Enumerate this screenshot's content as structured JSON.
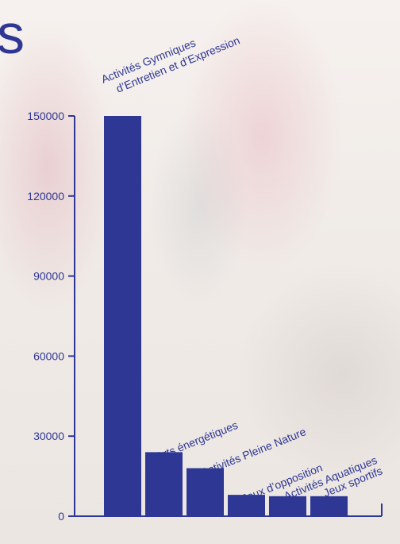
{
  "title_fragment": "s",
  "chart_data": {
    "type": "bar",
    "categories": [
      "Activités Gymniques d’Entretien et d’Expression",
      "Arts énergétiques",
      "Activités Pleine Nature",
      "Jeux d’opposition",
      "Activités Aquatiques",
      "Jeux sportifs"
    ],
    "category_label_lines": [
      [
        "Activités Gymniques",
        "d’Entretien et d’Expression"
      ],
      [
        "Arts énergétiques"
      ],
      [
        "Activités Pleine Nature"
      ],
      [
        "Jeux d’opposition"
      ],
      [
        "Activités Aquatiques"
      ],
      [
        "Jeux sportifs"
      ]
    ],
    "values": [
      150000,
      24000,
      18000,
      8000,
      7500,
      7500
    ],
    "ylim": [
      0,
      150000
    ],
    "yticks": [
      0,
      30000,
      60000,
      90000,
      120000,
      150000
    ],
    "ytick_labels": [
      "0",
      "30000",
      "60000",
      "90000",
      "120000",
      "150000"
    ],
    "xlabel": "",
    "ylabel": "",
    "grid": false,
    "bar_color": "#2e3793",
    "text_color": "#2e3793",
    "axis_color": "#2e3793"
  }
}
